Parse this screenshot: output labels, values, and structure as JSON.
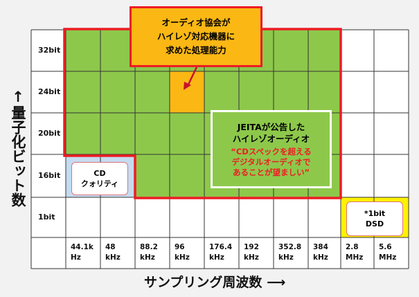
{
  "rows": [
    "32bit",
    "24bit",
    "20bit",
    "16bit",
    "1bit"
  ],
  "columns": [
    {
      "value": "44.1k",
      "unit": "Hz"
    },
    {
      "value": "48",
      "unit": "kHz"
    },
    {
      "value": "88.2",
      "unit": "kHz"
    },
    {
      "value": "96",
      "unit": "kHz"
    },
    {
      "value": "176.4",
      "unit": "kHz"
    },
    {
      "value": "192",
      "unit": "kHz"
    },
    {
      "value": "352.8",
      "unit": "kHz"
    },
    {
      "value": "384",
      "unit": "kHz"
    },
    {
      "value": "2.8",
      "unit": "MHz"
    },
    {
      "value": "5.6",
      "unit": "MHz"
    }
  ],
  "y_axis_label": "量子化ビット数",
  "y_axis_arrow": "↑",
  "x_axis_label": "サンプリング周波数",
  "x_axis_arrow": "⟶",
  "callout": {
    "lines": [
      "オーディオ協会が",
      "ハイレゾ対応機器に",
      "求めた処理能力"
    ]
  },
  "jeita": {
    "title_lines": [
      "JEITAが公告した",
      "ハイレゾオーディオ"
    ],
    "quote_lines": [
      "“CDスペックを超える",
      "デジタルオーディオで",
      "あることが望ましい”"
    ]
  },
  "cd": {
    "lines": [
      "CD",
      "クォリティ"
    ]
  },
  "dsd": {
    "lines": [
      "*1bit",
      "DSD"
    ]
  },
  "colors": {
    "green": "#8dc84b",
    "orange": "#fbb714",
    "red": "#ee1c24",
    "cd_blue": "#c5dcf0",
    "dsd_yellow": "#fff200"
  }
}
